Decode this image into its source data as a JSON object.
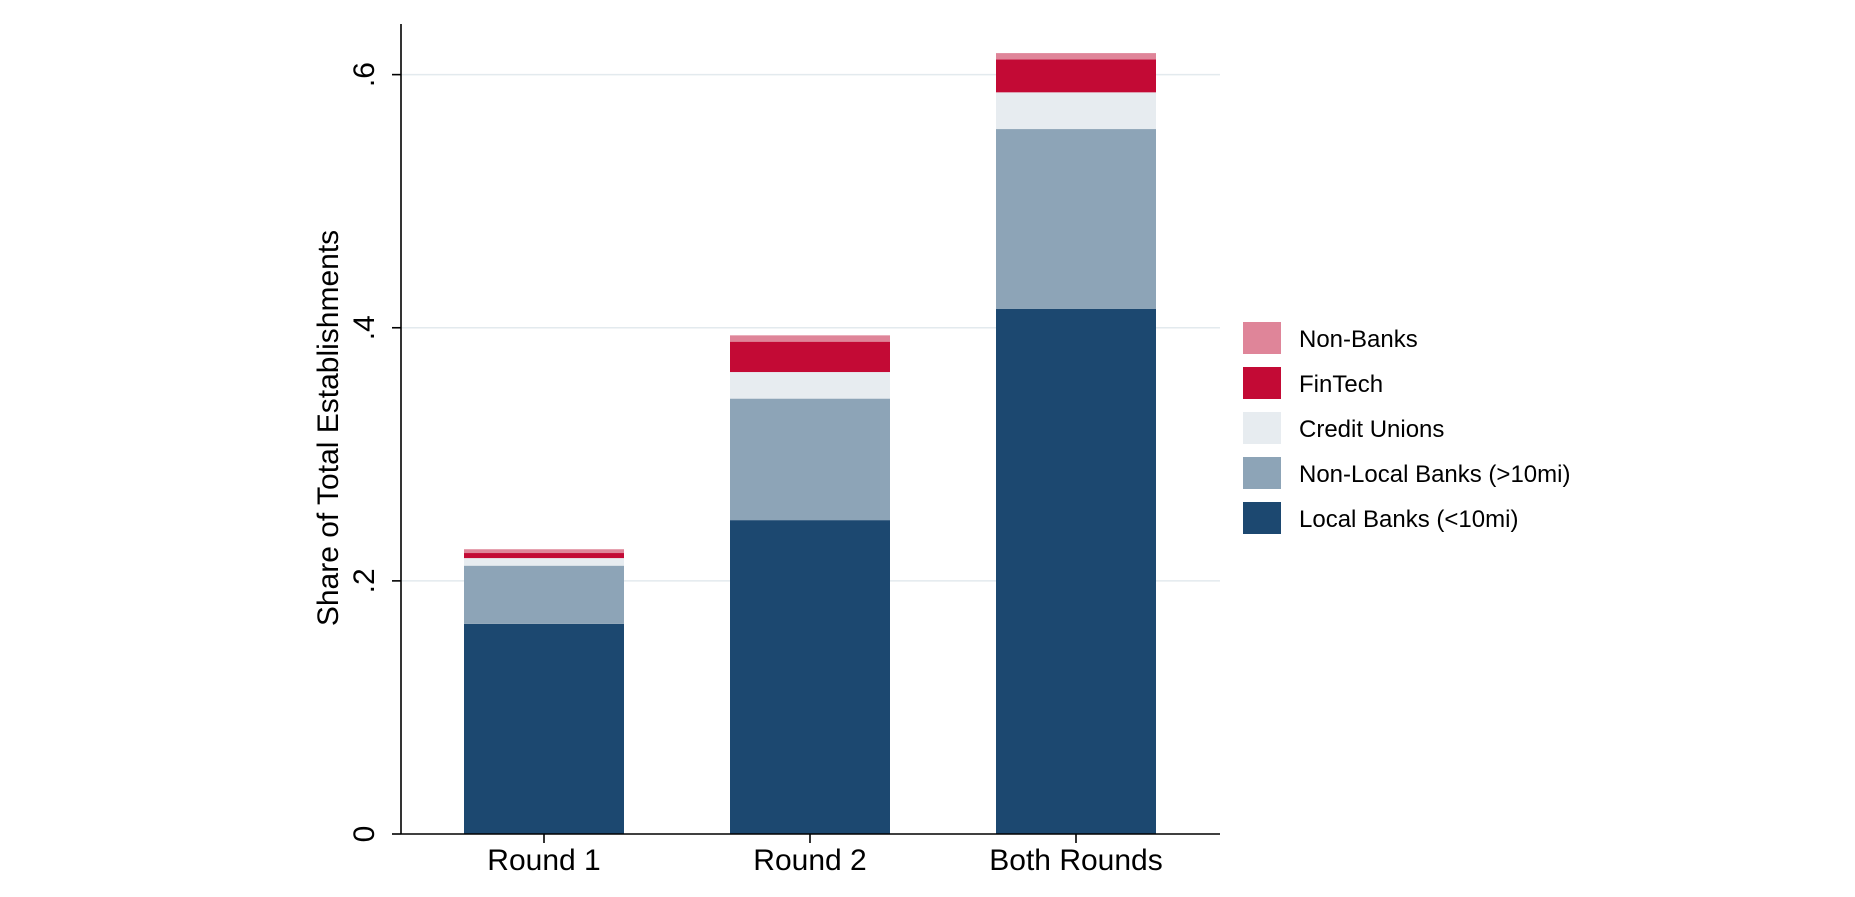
{
  "chart_data": {
    "type": "bar",
    "stacked": true,
    "title": "",
    "xlabel": "",
    "ylabel": "Share of Total Establishments",
    "ylim": [
      0,
      0.64
    ],
    "yticks": [
      0,
      0.2,
      0.4,
      0.6
    ],
    "ytick_labels": [
      "0",
      ".2",
      ".4",
      ".6"
    ],
    "grid": true,
    "legend_position": "right",
    "categories": [
      "Round 1",
      "Round 2",
      "Both Rounds"
    ],
    "series": [
      {
        "name": "Local Banks (<10mi)",
        "color": "#1c4870",
        "values": [
          0.166,
          0.248,
          0.415
        ]
      },
      {
        "name": "Non-Local Banks (>10mi)",
        "color": "#8da4b7",
        "values": [
          0.046,
          0.096,
          0.142
        ]
      },
      {
        "name": "Credit Unions",
        "color": "#e7ecf0",
        "values": [
          0.006,
          0.021,
          0.029
        ]
      },
      {
        "name": "FinTech",
        "color": "#c30a35",
        "values": [
          0.004,
          0.024,
          0.026
        ]
      },
      {
        "name": "Non-Banks",
        "color": "#df8599",
        "values": [
          0.003,
          0.005,
          0.005
        ]
      }
    ],
    "legend_order": [
      "Non-Banks",
      "FinTech",
      "Credit Unions",
      "Non-Local Banks (>10mi)",
      "Local Banks (<10mi)"
    ]
  }
}
